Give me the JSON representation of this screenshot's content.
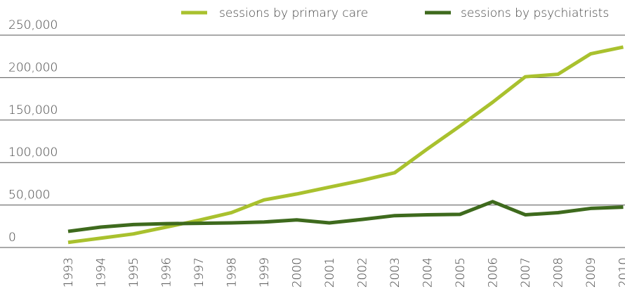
{
  "chart_data": {
    "type": "line",
    "categories": [
      "1993",
      "1994",
      "1995",
      "1996",
      "1997",
      "1998",
      "1999",
      "2000",
      "2001",
      "2002",
      "2003",
      "2004",
      "2005",
      "2006",
      "2007",
      "2008",
      "2009",
      "2010"
    ],
    "series": [
      {
        "name": "sessions by primary care",
        "color": "#a9c12e",
        "values": [
          6000,
          11000,
          16000,
          24000,
          32000,
          41000,
          56000,
          63000,
          71000,
          79000,
          88000,
          116000,
          143000,
          171000,
          201000,
          204000,
          228000,
          236000
        ]
      },
      {
        "name": "sessions by psychiatrists",
        "color": "#3e6a1d",
        "values": [
          19000,
          24000,
          27000,
          28000,
          28500,
          29000,
          30000,
          32500,
          29000,
          33000,
          37500,
          38500,
          39000,
          54000,
          38500,
          41000,
          46000,
          47500
        ]
      }
    ],
    "ylim": [
      0,
      250000
    ],
    "yticks": [
      0,
      {
        "value": 50000,
        "label": "50,000"
      },
      {
        "value": 100000,
        "label": "100,000"
      },
      {
        "value": 150000,
        "label": "150,000"
      },
      {
        "value": 200000,
        "label": "200,000"
      },
      {
        "value": 250000,
        "label": "250,000"
      }
    ],
    "grid": true,
    "legend": "top"
  }
}
